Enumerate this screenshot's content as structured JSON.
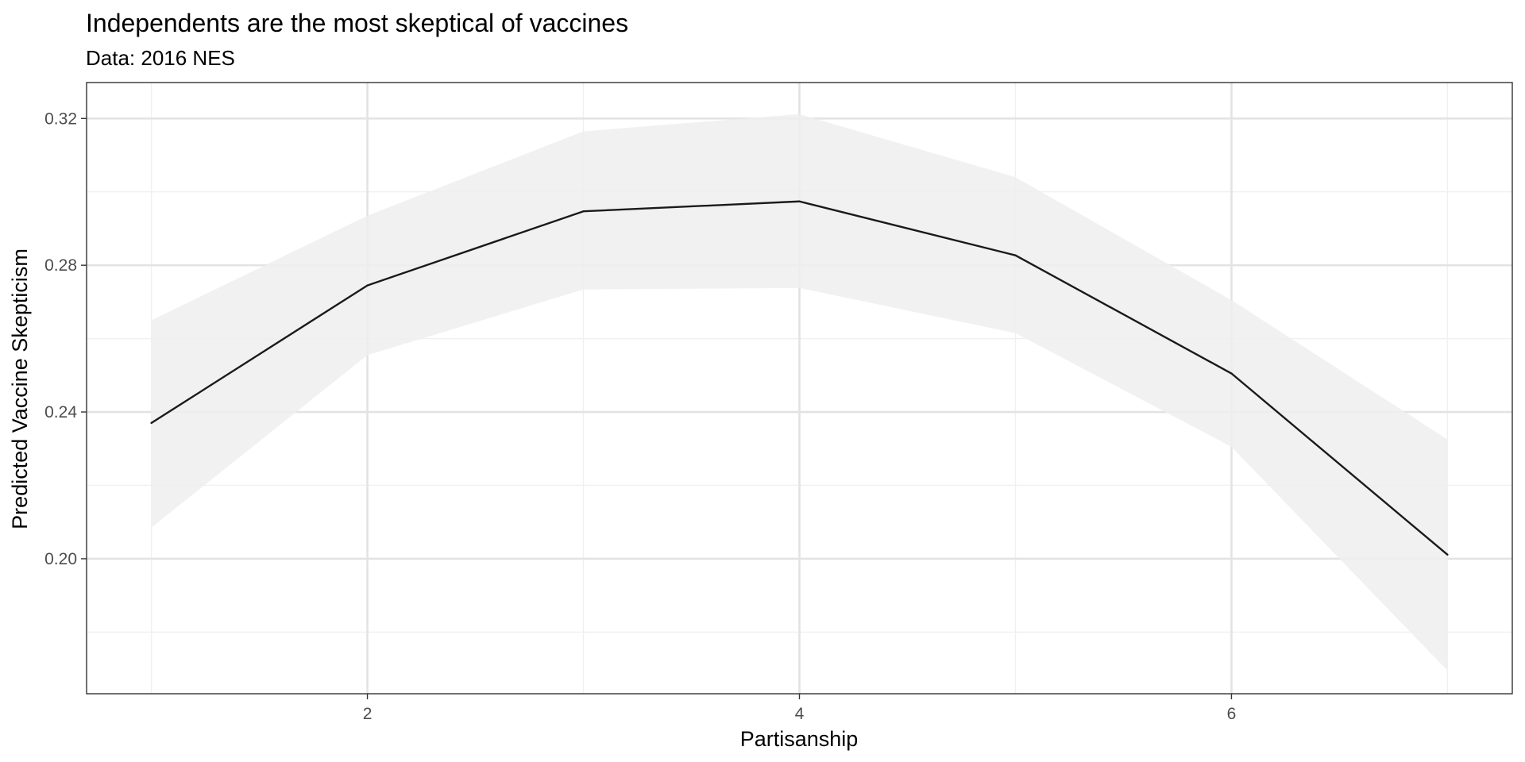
{
  "chart_data": {
    "type": "line",
    "title": "Independents are the most skeptical of vaccines",
    "subtitle": "Data: 2016 NES",
    "xlabel": "Partisanship",
    "ylabel": "Predicted Vaccine Skepticism",
    "x": [
      1,
      2,
      3,
      4,
      5,
      6,
      7
    ],
    "series": [
      {
        "values": [
          0.237,
          0.2745,
          0.2947,
          0.2974,
          0.2827,
          0.2505,
          0.2011
        ],
        "lower": [
          0.2085,
          0.2555,
          0.2734,
          0.2738,
          0.2615,
          0.2305,
          0.1695
        ],
        "upper": [
          0.265,
          0.2935,
          0.3165,
          0.3212,
          0.304,
          0.2705,
          0.2325
        ]
      }
    ],
    "xlim": [
      0.7,
      7.3
    ],
    "ylim": [
      0.1632,
      0.3298
    ],
    "xticks": [
      2,
      4,
      6
    ],
    "xtick_labels": [
      "2",
      "4",
      "6"
    ],
    "yticks": [
      0.2,
      0.24,
      0.28,
      0.32
    ],
    "ytick_labels": [
      "0.20",
      "0.24",
      "0.28",
      "0.32"
    ],
    "x_minor": [
      1,
      3,
      5,
      7
    ],
    "y_minor": [
      0.18,
      0.22,
      0.26,
      0.3
    ],
    "grid": true,
    "legend": "none",
    "colors": {
      "line": "#1a1a1a",
      "ribbon": "#efefef",
      "grid_major": "#e3e3e3",
      "grid_minor": "#f0f0f0",
      "border": "#333333",
      "tick_text": "#4d4d4d"
    }
  }
}
